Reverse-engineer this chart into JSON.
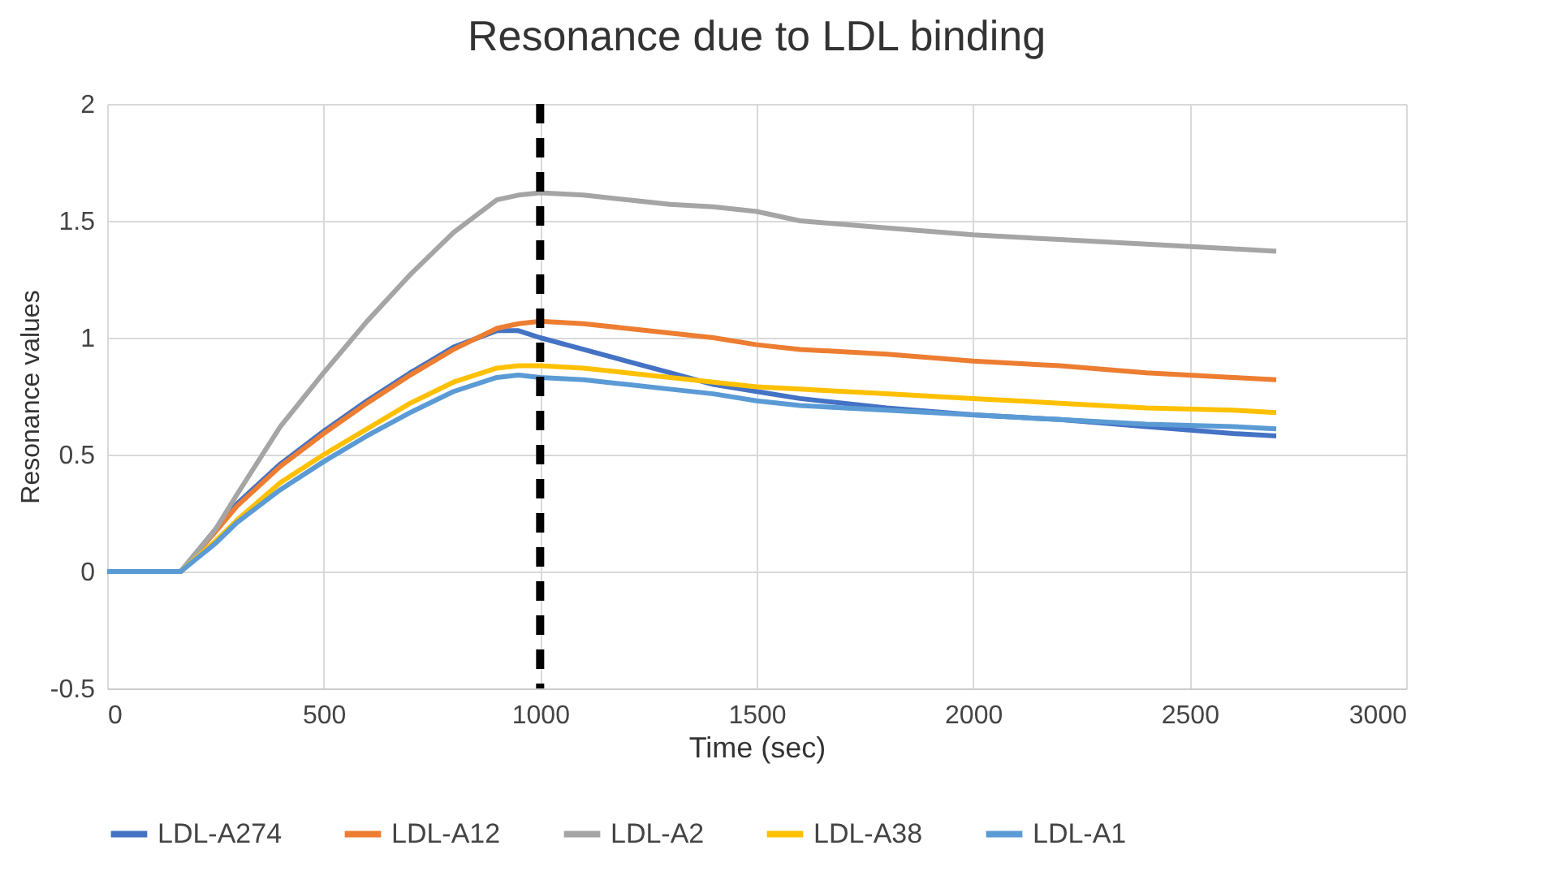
{
  "chart_data": {
    "type": "line",
    "title": "Resonance due to LDL binding",
    "xlabel": "Time (sec)",
    "ylabel": "Resonance values",
    "x": [
      0,
      100,
      170,
      250,
      300,
      400,
      500,
      600,
      700,
      800,
      900,
      950,
      1000,
      1100,
      1200,
      1300,
      1400,
      1500,
      1600,
      1800,
      2000,
      2200,
      2400,
      2600,
      2700
    ],
    "series": [
      {
        "name": "LDL-A274",
        "color": "#4472c4",
        "values": [
          0,
          0,
          0,
          0.18,
          0.29,
          0.46,
          0.6,
          0.73,
          0.85,
          0.96,
          1.03,
          1.03,
          1.0,
          0.95,
          0.9,
          0.85,
          0.8,
          0.77,
          0.74,
          0.7,
          0.67,
          0.65,
          0.62,
          0.59,
          0.58
        ]
      },
      {
        "name": "LDL-A12",
        "color": "#ed7d31",
        "values": [
          0,
          0,
          0,
          0.17,
          0.28,
          0.45,
          0.59,
          0.72,
          0.84,
          0.95,
          1.04,
          1.06,
          1.07,
          1.06,
          1.04,
          1.02,
          1.0,
          0.97,
          0.95,
          0.93,
          0.9,
          0.88,
          0.85,
          0.83,
          0.82
        ]
      },
      {
        "name": "LDL-A2",
        "color": "#a5a5a5",
        "values": [
          0,
          0,
          0,
          0.18,
          0.33,
          0.62,
          0.85,
          1.07,
          1.27,
          1.45,
          1.59,
          1.61,
          1.62,
          1.61,
          1.59,
          1.57,
          1.56,
          1.54,
          1.5,
          1.47,
          1.44,
          1.42,
          1.4,
          1.38,
          1.37
        ]
      },
      {
        "name": "LDL-A38",
        "color": "#ffc000",
        "values": [
          0,
          0,
          0,
          0.13,
          0.22,
          0.38,
          0.5,
          0.61,
          0.72,
          0.81,
          0.87,
          0.88,
          0.88,
          0.87,
          0.85,
          0.83,
          0.81,
          0.79,
          0.78,
          0.76,
          0.74,
          0.72,
          0.7,
          0.69,
          0.68
        ]
      },
      {
        "name": "LDL-A1",
        "color": "#5b9bd5",
        "values": [
          0,
          0,
          0,
          0.12,
          0.21,
          0.35,
          0.47,
          0.58,
          0.68,
          0.77,
          0.83,
          0.84,
          0.83,
          0.82,
          0.8,
          0.78,
          0.76,
          0.73,
          0.71,
          0.69,
          0.67,
          0.65,
          0.63,
          0.62,
          0.61
        ]
      }
    ],
    "xlim": [
      0,
      3000
    ],
    "xticks": [
      0,
      500,
      1000,
      1500,
      2000,
      2500,
      3000
    ],
    "ylim": [
      -0.5,
      2
    ],
    "yticks": [
      -0.5,
      0,
      0.5,
      1,
      1.5,
      2
    ],
    "ref_lines": [
      {
        "axis": "x",
        "value": 1000,
        "color": "#000000",
        "line_style": "dashed"
      }
    ],
    "grid": true,
    "legend": "bottom",
    "marker": "none",
    "line_style": "solid"
  }
}
